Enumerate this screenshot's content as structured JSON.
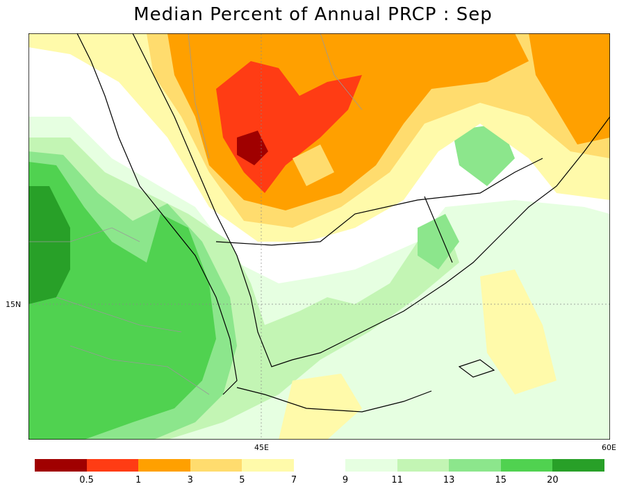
{
  "title": "Median Percent of Annual PRCP :   Sep",
  "axes": {
    "x_labels": [
      "45E",
      "60E"
    ],
    "y_labels": [
      "15N"
    ]
  },
  "legend": {
    "warm_colors": [
      "#a00000",
      "#ff3c14",
      "#ffa000",
      "#ffdc6e",
      "#fffaaa"
    ],
    "cool_colors": [
      "#e6ffe1",
      "#c3f5b4",
      "#8ce68c",
      "#50d250",
      "#28a028"
    ],
    "warm_ticks": [
      "0.5",
      "1",
      "3",
      "5",
      "7"
    ],
    "cool_ticks": [
      "9",
      "11",
      "13",
      "15",
      "20"
    ]
  }
}
